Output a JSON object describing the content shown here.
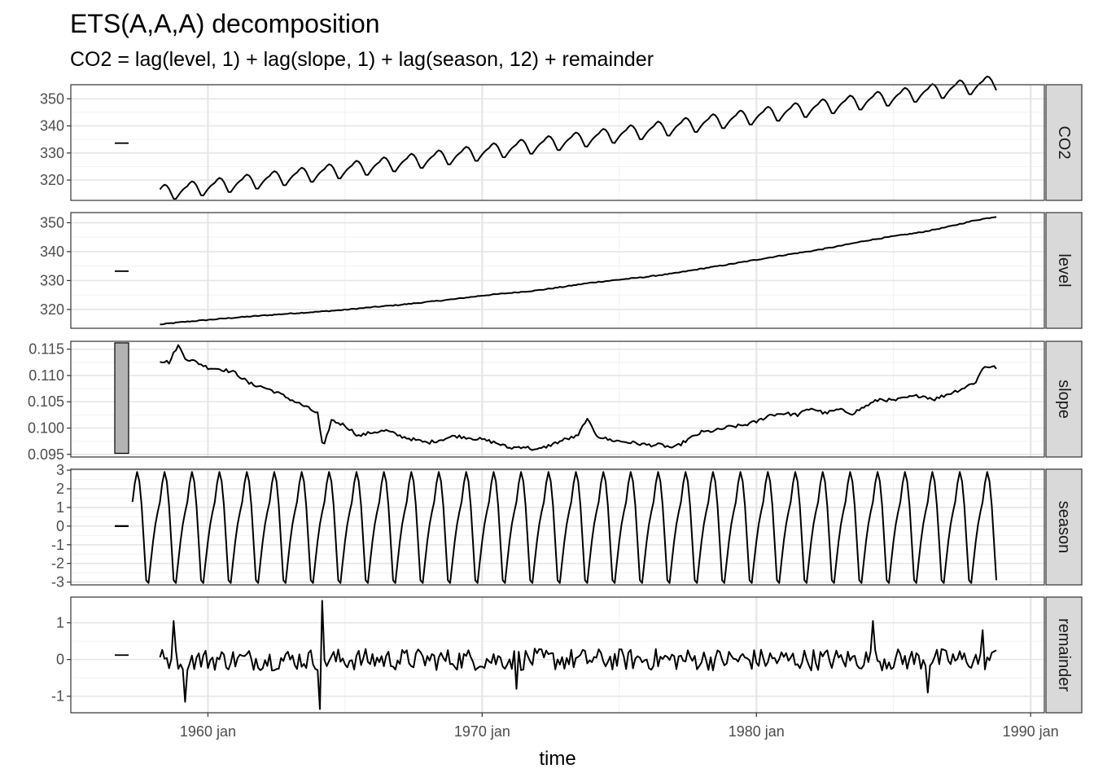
{
  "chart_data": {
    "type": "line",
    "title": "ETS(A,A,A) decomposition",
    "subtitle": "CO2 = lag(level, 1) + lag(slope, 1) + lag(season, 12) + remainder",
    "xlabel": "time",
    "x_range": [
      1955.0,
      1990.5
    ],
    "x_start": 1957.25,
    "x_step": 0.0833333,
    "x_ticks": [
      {
        "value": 1960,
        "label": "1960 jan"
      },
      {
        "value": 1970,
        "label": "1970 jan"
      },
      {
        "value": 1980,
        "label": "1980 jan"
      },
      {
        "value": 1990,
        "label": "1990 jan"
      }
    ],
    "grid": true,
    "panels": [
      {
        "name": "CO2",
        "ylim": [
          312.5,
          355.2
        ],
        "y_ticks": [
          {
            "value": 320,
            "label": "320"
          },
          {
            "value": 330,
            "label": "330"
          },
          {
            "value": 340,
            "label": "340"
          },
          {
            "value": 350,
            "label": "350"
          }
        ],
        "range_bar": [
          333.6,
          333.9
        ],
        "series_start": 1958.25,
        "trend": {
          "start": 315.3,
          "slope": 1.235,
          "curve": 0.0032
        },
        "seasonal_amplitude": 2.9
      },
      {
        "name": "level",
        "ylim": [
          313.5,
          353.5
        ],
        "y_ticks": [
          {
            "value": 320,
            "label": "320"
          },
          {
            "value": 330,
            "label": "330"
          },
          {
            "value": 340,
            "label": "340"
          },
          {
            "value": 350,
            "label": "350"
          }
        ],
        "range_bar": [
          333.2,
          333.5
        ],
        "series_start": 1958.25,
        "points": [
          [
            1958.25,
            314.8
          ],
          [
            1959.0,
            315.6
          ],
          [
            1960.0,
            316.4
          ],
          [
            1961.0,
            317.2
          ],
          [
            1962.0,
            317.9
          ],
          [
            1963.0,
            318.6
          ],
          [
            1964.0,
            319.2
          ],
          [
            1965.0,
            319.9
          ],
          [
            1966.0,
            320.8
          ],
          [
            1967.0,
            321.6
          ],
          [
            1968.0,
            322.6
          ],
          [
            1969.0,
            323.6
          ],
          [
            1970.0,
            324.8
          ],
          [
            1971.0,
            325.7
          ],
          [
            1972.0,
            326.6
          ],
          [
            1973.0,
            327.9
          ],
          [
            1974.0,
            329.3
          ],
          [
            1975.0,
            330.3
          ],
          [
            1976.0,
            331.3
          ],
          [
            1977.0,
            332.5
          ],
          [
            1978.0,
            334.1
          ],
          [
            1979.0,
            335.6
          ],
          [
            1980.0,
            337.2
          ],
          [
            1981.0,
            338.8
          ],
          [
            1982.0,
            340.2
          ],
          [
            1983.0,
            341.9
          ],
          [
            1984.0,
            343.8
          ],
          [
            1985.0,
            345.3
          ],
          [
            1986.0,
            346.7
          ],
          [
            1987.0,
            348.6
          ],
          [
            1988.0,
            350.9
          ],
          [
            1988.75,
            352.1
          ]
        ]
      },
      {
        "name": "slope",
        "ylim": [
          0.0945,
          0.1165
        ],
        "y_ticks": [
          {
            "value": 0.095,
            "label": "0.095"
          },
          {
            "value": 0.1,
            "label": "0.100"
          },
          {
            "value": 0.105,
            "label": "0.105"
          },
          {
            "value": 0.11,
            "label": "0.110"
          },
          {
            "value": 0.115,
            "label": "0.115"
          }
        ],
        "range_bar": [
          0.0952,
          0.1162
        ],
        "series_start": 1958.25,
        "points": [
          [
            1958.25,
            0.1128
          ],
          [
            1958.6,
            0.1125
          ],
          [
            1958.9,
            0.1158
          ],
          [
            1959.2,
            0.1132
          ],
          [
            1959.6,
            0.1125
          ],
          [
            1960.0,
            0.1115
          ],
          [
            1960.5,
            0.1112
          ],
          [
            1961.0,
            0.1105
          ],
          [
            1961.5,
            0.1085
          ],
          [
            1962.0,
            0.1078
          ],
          [
            1962.5,
            0.1068
          ],
          [
            1963.0,
            0.1055
          ],
          [
            1963.5,
            0.1042
          ],
          [
            1964.0,
            0.1028
          ],
          [
            1964.2,
            0.0958
          ],
          [
            1964.5,
            0.1015
          ],
          [
            1965.0,
            0.1005
          ],
          [
            1965.5,
            0.0985
          ],
          [
            1966.0,
            0.0992
          ],
          [
            1966.5,
            0.0995
          ],
          [
            1967.0,
            0.0985
          ],
          [
            1967.5,
            0.0978
          ],
          [
            1968.0,
            0.0972
          ],
          [
            1968.5,
            0.0978
          ],
          [
            1969.0,
            0.0985
          ],
          [
            1969.5,
            0.0982
          ],
          [
            1970.0,
            0.0978
          ],
          [
            1970.5,
            0.0972
          ],
          [
            1971.0,
            0.0962
          ],
          [
            1971.5,
            0.0965
          ],
          [
            1972.0,
            0.0958
          ],
          [
            1972.5,
            0.0968
          ],
          [
            1973.0,
            0.0978
          ],
          [
            1973.5,
            0.0985
          ],
          [
            1973.8,
            0.1018
          ],
          [
            1974.2,
            0.0985
          ],
          [
            1974.6,
            0.0978
          ],
          [
            1975.0,
            0.0975
          ],
          [
            1975.5,
            0.0972
          ],
          [
            1976.0,
            0.0968
          ],
          [
            1976.5,
            0.0968
          ],
          [
            1977.0,
            0.0962
          ],
          [
            1977.5,
            0.0978
          ],
          [
            1978.0,
            0.0992
          ],
          [
            1978.5,
            0.0995
          ],
          [
            1979.0,
            0.1002
          ],
          [
            1979.5,
            0.1005
          ],
          [
            1980.0,
            0.1012
          ],
          [
            1980.5,
            0.1025
          ],
          [
            1981.0,
            0.1028
          ],
          [
            1981.5,
            0.1025
          ],
          [
            1982.0,
            0.1038
          ],
          [
            1982.5,
            0.1028
          ],
          [
            1983.0,
            0.1035
          ],
          [
            1983.5,
            0.1028
          ],
          [
            1984.0,
            0.1042
          ],
          [
            1984.5,
            0.1055
          ],
          [
            1985.0,
            0.1052
          ],
          [
            1985.5,
            0.1058
          ],
          [
            1986.0,
            0.1062
          ],
          [
            1986.5,
            0.1055
          ],
          [
            1987.0,
            0.1065
          ],
          [
            1987.5,
            0.1075
          ],
          [
            1988.0,
            0.1088
          ],
          [
            1988.3,
            0.1118
          ],
          [
            1988.75,
            0.1115
          ]
        ]
      },
      {
        "name": "season",
        "ylim": [
          -3.15,
          3.05
        ],
        "y_ticks": [
          {
            "value": -3,
            "label": "-3"
          },
          {
            "value": -2,
            "label": "-2"
          },
          {
            "value": -1,
            "label": "-1"
          },
          {
            "value": 0,
            "label": "0"
          },
          {
            "value": 1,
            "label": "1"
          },
          {
            "value": 2,
            "label": "2"
          },
          {
            "value": 3,
            "label": "3"
          }
        ],
        "range_bar": [
          -0.05,
          0.05
        ],
        "series_start": 1957.25,
        "cycle": [
          1.3,
          2.3,
          2.9,
          2.4,
          1.1,
          -0.9,
          -2.9,
          -3.05,
          -1.9,
          -0.8,
          0.1,
          0.75
        ]
      },
      {
        "name": "remainder",
        "ylim": [
          -1.45,
          1.7
        ],
        "y_ticks": [
          {
            "value": -1,
            "label": "-1"
          },
          {
            "value": 0,
            "label": "0"
          },
          {
            "value": 1,
            "label": "1"
          }
        ],
        "range_bar": [
          0.1,
          0.14
        ],
        "series_start": 1958.25,
        "spikes": [
          [
            1958.75,
            1.05
          ],
          [
            1959.15,
            -1.15
          ],
          [
            1964.1,
            -1.35
          ],
          [
            1964.2,
            1.6
          ],
          [
            1971.25,
            -0.8
          ],
          [
            1984.25,
            1.05
          ],
          [
            1986.25,
            -0.9
          ],
          [
            1988.25,
            0.8
          ]
        ],
        "noise_scale": 0.3
      }
    ]
  }
}
